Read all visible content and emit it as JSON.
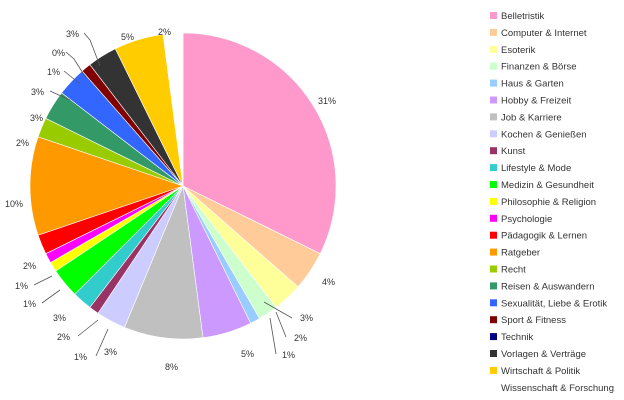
{
  "chart_data": {
    "type": "pie",
    "title": "",
    "legend_position": "right",
    "start": "top",
    "direction": "clockwise",
    "slices": [
      {
        "name": "Belletristik",
        "value": 31,
        "label": "31%",
        "color": "#ff99cc"
      },
      {
        "name": "Computer & Internet",
        "value": 4,
        "label": "4%",
        "color": "#ffcc99"
      },
      {
        "name": "Esoterik",
        "value": 3,
        "label": "3%",
        "color": "#ffff99"
      },
      {
        "name": "Finanzen & Börse",
        "value": 2,
        "label": "2%",
        "color": "#ccffcc"
      },
      {
        "name": "Haus & Garten",
        "value": 1,
        "label": "1%",
        "color": "#99ccff"
      },
      {
        "name": "Hobby & Freizeit",
        "value": 5,
        "label": "5%",
        "color": "#cc99ff"
      },
      {
        "name": "Job & Karriere",
        "value": 8,
        "label": "8%",
        "color": "#c0c0c0"
      },
      {
        "name": "Kochen & Genießen",
        "value": 3,
        "label": "3%",
        "color": "#ccccff"
      },
      {
        "name": "Kunst",
        "value": 1,
        "label": "1%",
        "color": "#993366"
      },
      {
        "name": "Lifestyle & Mode",
        "value": 2,
        "label": "2%",
        "color": "#33cccc"
      },
      {
        "name": "Medizin & Gesundheit",
        "value": 3,
        "label": "3%",
        "color": "#00ff00"
      },
      {
        "name": "Philosophie & Religion",
        "value": 1,
        "label": "1%",
        "color": "#ffff00"
      },
      {
        "name": "Psychologie",
        "value": 1,
        "label": "1%",
        "color": "#ff00ff"
      },
      {
        "name": "Pädagogik & Lernen",
        "value": 2,
        "label": "2%",
        "color": "#ff0000"
      },
      {
        "name": "Ratgeber",
        "value": 10,
        "label": "10%",
        "color": "#ff9900"
      },
      {
        "name": "Recht",
        "value": 2,
        "label": "2%",
        "color": "#99cc00"
      },
      {
        "name": "Reisen & Auswandern",
        "value": 3,
        "label": "3%",
        "color": "#339966"
      },
      {
        "name": "Sexualität, Liebe & Erotik",
        "value": 3,
        "label": "3%",
        "color": "#3366ff"
      },
      {
        "name": "Sport & Fitness",
        "value": 1,
        "label": "1%",
        "color": "#800000"
      },
      {
        "name": "Technik",
        "value": 0,
        "label": "0%",
        "color": "#000080"
      },
      {
        "name": "Vorlagen & Verträge",
        "value": 3,
        "label": "3%",
        "color": "#333333"
      },
      {
        "name": "Wirtschaft & Politik",
        "value": 5,
        "label": "5%",
        "color": "#ffcc00"
      },
      {
        "name": "Wissenschaft & Forschung",
        "value": 2,
        "label": "2%",
        "color": "#ffffff"
      }
    ]
  }
}
